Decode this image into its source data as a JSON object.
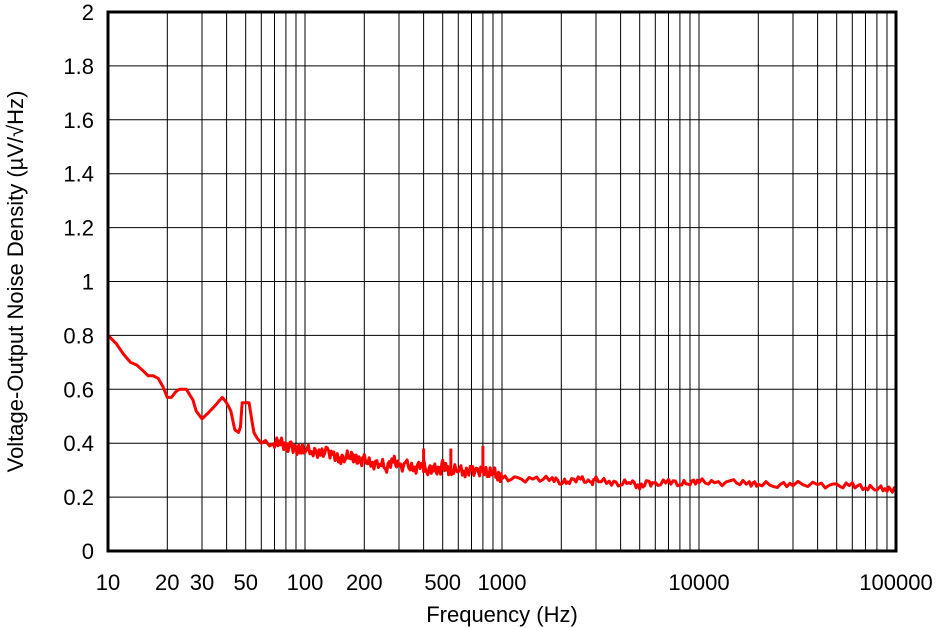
{
  "chart_data": {
    "type": "line",
    "title": "",
    "xlabel": "Frequency (Hz)",
    "ylabel": "Voltage-Output Noise Density (µV/√Hz)",
    "x_scale": "log",
    "xlim": [
      10,
      100000
    ],
    "ylim": [
      0,
      2
    ],
    "grid": true,
    "legend": "none",
    "x_tick_labels": [
      {
        "value": 10,
        "label": "10"
      },
      {
        "value": 20,
        "label": "20"
      },
      {
        "value": 30,
        "label": "30"
      },
      {
        "value": 50,
        "label": "50"
      },
      {
        "value": 100,
        "label": "100"
      },
      {
        "value": 200,
        "label": "200"
      },
      {
        "value": 500,
        "label": "500"
      },
      {
        "value": 1000,
        "label": "1000"
      },
      {
        "value": 10000,
        "label": "10000"
      },
      {
        "value": 100000,
        "label": "100000"
      }
    ],
    "y_tick_labels": [
      {
        "value": 0,
        "label": "0"
      },
      {
        "value": 0.2,
        "label": "0.2"
      },
      {
        "value": 0.4,
        "label": "0.4"
      },
      {
        "value": 0.6,
        "label": "0.6"
      },
      {
        "value": 0.8,
        "label": "0.8"
      },
      {
        "value": 1,
        "label": "1"
      },
      {
        "value": 1.2,
        "label": "1.2"
      },
      {
        "value": 1.4,
        "label": "1.4"
      },
      {
        "value": 1.6,
        "label": "1.6"
      },
      {
        "value": 1.8,
        "label": "1.8"
      },
      {
        "value": 2,
        "label": "2"
      }
    ],
    "series": [
      {
        "color": "#ff0000",
        "x": [
          10,
          11,
          12,
          13,
          14,
          15,
          16,
          17,
          18,
          19,
          20,
          21,
          22,
          23,
          25,
          27,
          28,
          30,
          32,
          34,
          36,
          38,
          40,
          42,
          44,
          46,
          47,
          48,
          50,
          52,
          55,
          57,
          60,
          63,
          66,
          70,
          75,
          80,
          85,
          90,
          95,
          100,
          110,
          120,
          130,
          140,
          150,
          160,
          170,
          180,
          190,
          200,
          220,
          240,
          260,
          280,
          300,
          330,
          360,
          390,
          420,
          450,
          480,
          500,
          530,
          560,
          600,
          650,
          700,
          750,
          800,
          850,
          900,
          950,
          1000,
          1200,
          1500,
          1800,
          2000,
          2200,
          2500,
          2800,
          3000,
          3500,
          4000,
          4500,
          5000,
          5500,
          6000,
          7000,
          8000,
          9000,
          10000,
          12000,
          15000,
          18000,
          20000,
          25000,
          30000,
          40000,
          50000,
          60000,
          70000,
          80000,
          90000,
          100000
        ],
        "y": [
          0.8,
          0.77,
          0.73,
          0.7,
          0.69,
          0.67,
          0.65,
          0.65,
          0.64,
          0.61,
          0.57,
          0.57,
          0.59,
          0.6,
          0.6,
          0.56,
          0.52,
          0.49,
          0.51,
          0.53,
          0.55,
          0.57,
          0.55,
          0.52,
          0.45,
          0.44,
          0.46,
          0.55,
          0.55,
          0.55,
          0.44,
          0.42,
          0.4,
          0.41,
          0.39,
          0.4,
          0.41,
          0.38,
          0.39,
          0.37,
          0.38,
          0.38,
          0.37,
          0.36,
          0.37,
          0.35,
          0.34,
          0.35,
          0.36,
          0.34,
          0.33,
          0.34,
          0.32,
          0.33,
          0.31,
          0.34,
          0.31,
          0.32,
          0.3,
          0.33,
          0.3,
          0.31,
          0.29,
          0.32,
          0.3,
          0.3,
          0.31,
          0.29,
          0.3,
          0.29,
          0.3,
          0.29,
          0.3,
          0.28,
          0.27,
          0.265,
          0.265,
          0.27,
          0.255,
          0.26,
          0.27,
          0.25,
          0.265,
          0.255,
          0.25,
          0.26,
          0.235,
          0.255,
          0.245,
          0.26,
          0.25,
          0.255,
          0.26,
          0.25,
          0.255,
          0.25,
          0.25,
          0.245,
          0.25,
          0.245,
          0.24,
          0.245,
          0.235,
          0.235,
          0.23,
          0.225
        ]
      }
    ],
    "spikes": [
      {
        "x": 400,
        "y": 0.38
      },
      {
        "x": 550,
        "y": 0.38
      },
      {
        "x": 800,
        "y": 0.39
      }
    ]
  }
}
